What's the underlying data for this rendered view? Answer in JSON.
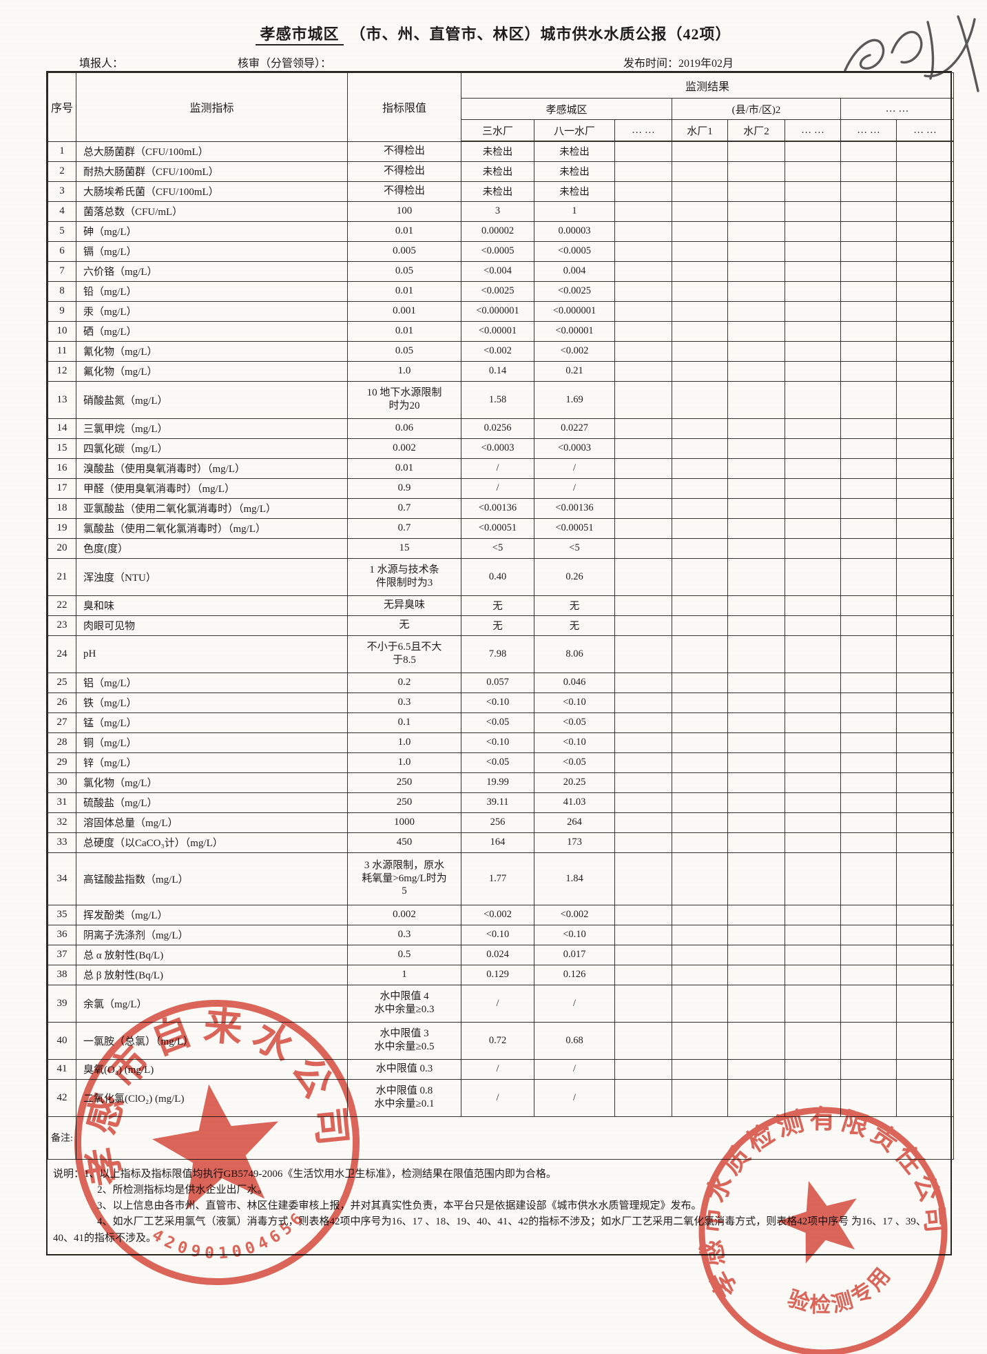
{
  "page": {
    "title_region": "孝感市城区",
    "title_rest": "（市、州、直管市、林区）城市供水水质公报（42项）",
    "filler_label": "填报人：",
    "reviewer_label": "核审（分管领导）：",
    "publish_label": "发布时间：2019年02月"
  },
  "table": {
    "headers": {
      "seq": "序号",
      "indicator": "监测指标",
      "limit": "指标限值",
      "result": "监测结果",
      "groups": [
        {
          "label": "孝感城区"
        },
        {
          "label": "(县/市/区)2"
        },
        {
          "label": "… …"
        }
      ],
      "plants": [
        "三水厂",
        "八一水厂",
        "… …",
        "水厂1",
        "水厂2",
        "… …",
        "… …",
        "… …"
      ]
    },
    "rows": [
      {
        "no": "1",
        "indicator": "总大肠菌群（CFU/100mL）",
        "limit": "不得检出",
        "v1": "未检出",
        "v2": "未检出"
      },
      {
        "no": "2",
        "indicator": "耐热大肠菌群（CFU/100mL）",
        "limit": "不得检出",
        "v1": "未检出",
        "v2": "未检出"
      },
      {
        "no": "3",
        "indicator": "大肠埃希氏菌（CFU/100mL）",
        "limit": "不得检出",
        "v1": "未检出",
        "v2": "未检出"
      },
      {
        "no": "4",
        "indicator": "菌落总数（CFU/mL）",
        "limit": "100",
        "v1": "3",
        "v2": "1"
      },
      {
        "no": "5",
        "indicator": "砷（mg/L）",
        "limit": "0.01",
        "v1": "0.00002",
        "v2": "0.00003"
      },
      {
        "no": "6",
        "indicator": "镉（mg/L）",
        "limit": "0.005",
        "v1": "<0.0005",
        "v2": "<0.0005"
      },
      {
        "no": "7",
        "indicator": "六价铬（mg/L）",
        "limit": "0.05",
        "v1": "<0.004",
        "v2": "0.004"
      },
      {
        "no": "8",
        "indicator": "铅（mg/L）",
        "limit": "0.01",
        "v1": "<0.0025",
        "v2": "<0.0025"
      },
      {
        "no": "9",
        "indicator": "汞（mg/L）",
        "limit": "0.001",
        "v1": "<0.000001",
        "v2": "<0.000001"
      },
      {
        "no": "10",
        "indicator": "硒（mg/L）",
        "limit": "0.01",
        "v1": "<0.00001",
        "v2": "<0.00001"
      },
      {
        "no": "11",
        "indicator": "氰化物（mg/L）",
        "limit": "0.05",
        "v1": "<0.002",
        "v2": "<0.002"
      },
      {
        "no": "12",
        "indicator": "氟化物（mg/L）",
        "limit": "1.0",
        "v1": "0.14",
        "v2": "0.21"
      },
      {
        "no": "13",
        "indicator": "硝酸盐氮（mg/L）",
        "limit": "10 地下水源限制\n时为20",
        "v1": "1.58",
        "v2": "1.69"
      },
      {
        "no": "14",
        "indicator": "三氯甲烷（mg/L）",
        "limit": "0.06",
        "v1": "0.0256",
        "v2": "0.0227"
      },
      {
        "no": "15",
        "indicator": "四氯化碳（mg/L）",
        "limit": "0.002",
        "v1": "<0.0003",
        "v2": "<0.0003"
      },
      {
        "no": "16",
        "indicator": "溴酸盐（使用臭氧消毒时）（mg/L）",
        "limit": "0.01",
        "v1": "/",
        "v2": "/"
      },
      {
        "no": "17",
        "indicator": "甲醛（使用臭氧消毒时）（mg/L）",
        "limit": "0.9",
        "v1": "/",
        "v2": "/"
      },
      {
        "no": "18",
        "indicator": "亚氯酸盐（使用二氧化氯消毒时）（mg/L）",
        "limit": "0.7",
        "v1": "<0.00136",
        "v2": "<0.00136"
      },
      {
        "no": "19",
        "indicator": "氯酸盐（使用二氧化氯消毒时）（mg/L）",
        "limit": "0.7",
        "v1": "<0.00051",
        "v2": "<0.00051"
      },
      {
        "no": "20",
        "indicator": "色度(度）",
        "limit": "15",
        "v1": "<5",
        "v2": "<5"
      },
      {
        "no": "21",
        "indicator": "浑浊度（NTU）",
        "limit": "1  水源与技术条\n件限制时为3",
        "v1": "0.40",
        "v2": "0.26"
      },
      {
        "no": "22",
        "indicator": "臭和味",
        "limit": "无异臭味",
        "v1": "无",
        "v2": "无"
      },
      {
        "no": "23",
        "indicator": "肉眼可见物",
        "limit": "无",
        "v1": "无",
        "v2": "无"
      },
      {
        "no": "24",
        "indicator": "pH",
        "limit": "不小于6.5且不大\n于8.5",
        "v1": "7.98",
        "v2": "8.06"
      },
      {
        "no": "25",
        "indicator": "铝（mg/L）",
        "limit": "0.2",
        "v1": "0.057",
        "v2": "0.046"
      },
      {
        "no": "26",
        "indicator": "铁（mg/L）",
        "limit": "0.3",
        "v1": "<0.10",
        "v2": "<0.10"
      },
      {
        "no": "27",
        "indicator": "锰（mg/L）",
        "limit": "0.1",
        "v1": "<0.05",
        "v2": "<0.05"
      },
      {
        "no": "28",
        "indicator": "铜（mg/L）",
        "limit": "1.0",
        "v1": "<0.10",
        "v2": "<0.10"
      },
      {
        "no": "29",
        "indicator": "锌（mg/L）",
        "limit": "1.0",
        "v1": "<0.05",
        "v2": "<0.05"
      },
      {
        "no": "30",
        "indicator": "氯化物（mg/L）",
        "limit": "250",
        "v1": "19.99",
        "v2": "20.25"
      },
      {
        "no": "31",
        "indicator": "硫酸盐（mg/L）",
        "limit": "250",
        "v1": "39.11",
        "v2": "41.03"
      },
      {
        "no": "32",
        "indicator": "溶固体总量（mg/L）",
        "limit": "1000",
        "v1": "256",
        "v2": "264"
      },
      {
        "no": "33",
        "indicator": "总硬度（以CaCO₃计）（mg/L）",
        "limit": "450",
        "v1": "164",
        "v2": "173"
      },
      {
        "no": "34",
        "indicator": "高锰酸盐指数（mg/L）",
        "limit": "3 水源限制，原水\n耗氧量>6mg/L时为\n5",
        "v1": "1.77",
        "v2": "1.84"
      },
      {
        "no": "35",
        "indicator": "挥发酚类（mg/L）",
        "limit": "0.002",
        "v1": "<0.002",
        "v2": "<0.002"
      },
      {
        "no": "36",
        "indicator": "阴离子洗涤剂（mg/L）",
        "limit": "0.3",
        "v1": "<0.10",
        "v2": "<0.10"
      },
      {
        "no": "37",
        "indicator": "总 α 放射性(Bq/L)",
        "limit": "0.5",
        "v1": "0.024",
        "v2": "0.017"
      },
      {
        "no": "38",
        "indicator": "总 β 放射性(Bq/L)",
        "limit": "1",
        "v1": "0.129",
        "v2": "0.126"
      },
      {
        "no": "39",
        "indicator": "余氯（mg/L）",
        "limit": "水中限值 4\n水中余量≥0.3",
        "v1": "/",
        "v2": "/"
      },
      {
        "no": "40",
        "indicator": "一氯胺（总氯）（mg/L）",
        "limit": "水中限值 3\n水中余量≥0.5",
        "v1": "0.72",
        "v2": "0.68"
      },
      {
        "no": "41",
        "indicator": "臭氧(O₃) (mg/L)",
        "limit": "水中限值 0.3",
        "v1": "/",
        "v2": "/"
      },
      {
        "no": "42",
        "indicator": "二氧化氯(ClO₂) (mg/L)",
        "limit": "水中限值 0.8\n水中余量≥0.1",
        "v1": "/",
        "v2": "/"
      }
    ],
    "remark_label": "备注:"
  },
  "notes": {
    "label": "说明：",
    "items": [
      "1、以上指标及指标限值均执行GB5749-2006《生活饮用水卫生标准》，检测结果在限值范围内即为合格。",
      "2、所检测指标均是供水企业出厂水。",
      "3、以上信息由各市州、直管市、林区住建委审核上报，并对其真实性负责，本平台只是依据建设部《城市供水水质管理规定》发布。",
      "4、如水厂工艺采用氯气（液氯）消毒方式，则表格42项中序号为16、17 、18、19、40、41、42的指标不涉及；如水厂工艺采用二氧化氯消毒方式，则表格42项中序号 为16、17 、39、40、41的指标不涉及。"
    ]
  },
  "stamps": {
    "left": {
      "ring_text": "孝感市自来水公司",
      "code": "420901004656",
      "color": "#dc5245"
    },
    "right": {
      "ring_text": "孝感市水质检测有限责任公司",
      "banner": "检验检测专用章",
      "color": "#dc5245"
    }
  },
  "colors": {
    "stamp_red": "#dc5245",
    "line": "#33332c",
    "paper": "#fbfaf7"
  }
}
